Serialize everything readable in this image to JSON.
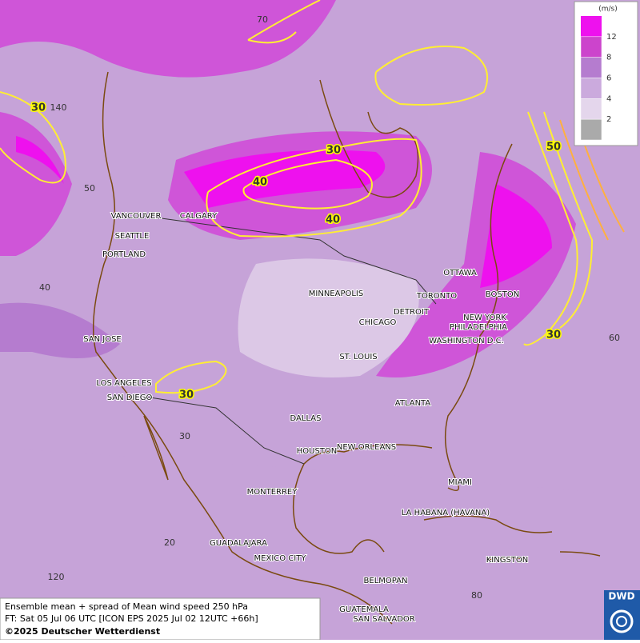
{
  "map": {
    "cities": [
      "VANCOUVER",
      "CALGARY",
      "SEATTLE",
      "PORTLAND",
      "SAN JOSE",
      "LOS ANGELES",
      "SAN DIEGO",
      "MINNEAPOLIS",
      "CHICAGO",
      "DETROIT",
      "TORONTO",
      "OTTAWA",
      "BOSTON",
      "NEW YORK",
      "PHILADELPHIA",
      "WASHINGTON D.C.",
      "ST. LOUIS",
      "ATLANTA",
      "DALLAS",
      "HOUSTON",
      "NEW ORLEANS",
      "MIAMI",
      "MONTERREY",
      "LA HABANA (HAVANA)",
      "GUADALAJARA",
      "MEXICO CITY",
      "KINGSTON",
      "BELMOPAN",
      "GUATEMALA",
      "SAN SALVADOR"
    ],
    "contour_labels": [
      30,
      30,
      40,
      40,
      50,
      30,
      30
    ],
    "grid_labels": [
      70,
      140,
      50,
      40,
      60,
      30,
      20,
      120,
      80
    ]
  },
  "legend": {
    "unit": "(m/s)",
    "levels": [
      {
        "value": 12,
        "color": "#ee11ee"
      },
      {
        "value": 8,
        "color": "#cc44cc"
      },
      {
        "value": 6,
        "color": "#b57ccf"
      },
      {
        "value": 4,
        "color": "#cbaadd"
      },
      {
        "value": 2,
        "color": "#e4d6ec"
      }
    ]
  },
  "footer": {
    "line1": "Ensemble mean + spread of Mean wind speed 250 hPa",
    "line2": "FT: Sat 05 Jul 06 UTC [ICON EPS 2025 Jul 02 12UTC +66h]",
    "copyright": "©2025 Deutscher Wetterdienst"
  },
  "logo": "DWD"
}
